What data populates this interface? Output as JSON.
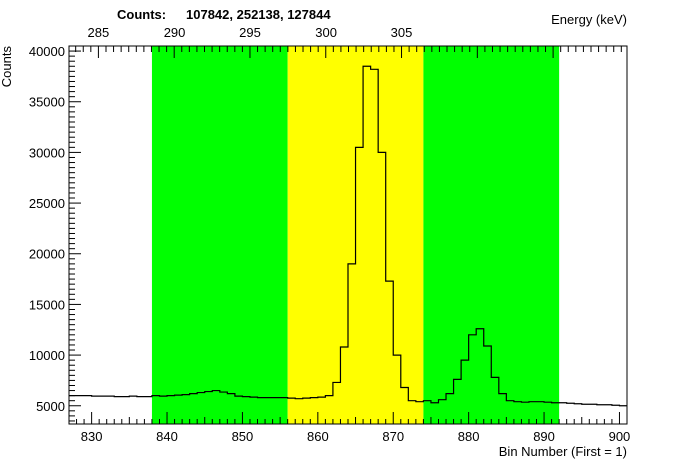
{
  "chart_data": {
    "type": "histogram",
    "counts_label": "Counts:",
    "counts_values": "107842,   252138,   127844",
    "ylabel": "Counts",
    "xlabel": "Bin Number (First = 1)",
    "x2label": "Energy (keV)",
    "xlim": [
      827,
      901
    ],
    "ylim": [
      3200,
      40500
    ],
    "x_ticks": [
      830,
      840,
      850,
      860,
      870,
      880,
      890,
      900
    ],
    "y_ticks": [
      5000,
      10000,
      15000,
      20000,
      25000,
      30000,
      35000,
      40000
    ],
    "energy_ticks": [
      {
        "label": "285",
        "bin": 830.9
      },
      {
        "label": "290",
        "bin": 841.0
      },
      {
        "label": "295",
        "bin": 851.0
      },
      {
        "label": "300",
        "bin": 861.1
      },
      {
        "label": "305",
        "bin": 871.1
      }
    ],
    "regions": [
      {
        "name": "background-left",
        "from": 838,
        "to": 856,
        "color": "#00ff00"
      },
      {
        "name": "peak",
        "from": 856,
        "to": 874,
        "color": "#ffff00"
      },
      {
        "name": "background-right",
        "from": 874,
        "to": 892,
        "color": "#00ff00"
      }
    ],
    "bin_edges_start": 827,
    "bin_width": 1,
    "bin_values": [
      6000,
      6000,
      6000,
      5950,
      5950,
      5950,
      5900,
      5900,
      5950,
      5900,
      5900,
      6000,
      5950,
      6000,
      6050,
      6100,
      6200,
      6300,
      6400,
      6500,
      6350,
      6200,
      5950,
      5900,
      5850,
      5800,
      5800,
      5800,
      5800,
      5750,
      5700,
      5750,
      5800,
      5850,
      6000,
      7300,
      10800,
      19000,
      30500,
      38500,
      38200,
      30000,
      17300,
      10000,
      6800,
      5500,
      5400,
      5500,
      5300,
      5600,
      6200,
      7600,
      9500,
      12000,
      12600,
      10900,
      7800,
      6200,
      5500,
      5400,
      5350,
      5400,
      5400,
      5350,
      5300,
      5300,
      5250,
      5200,
      5150,
      5150,
      5100,
      5100,
      5050,
      5000
    ]
  }
}
